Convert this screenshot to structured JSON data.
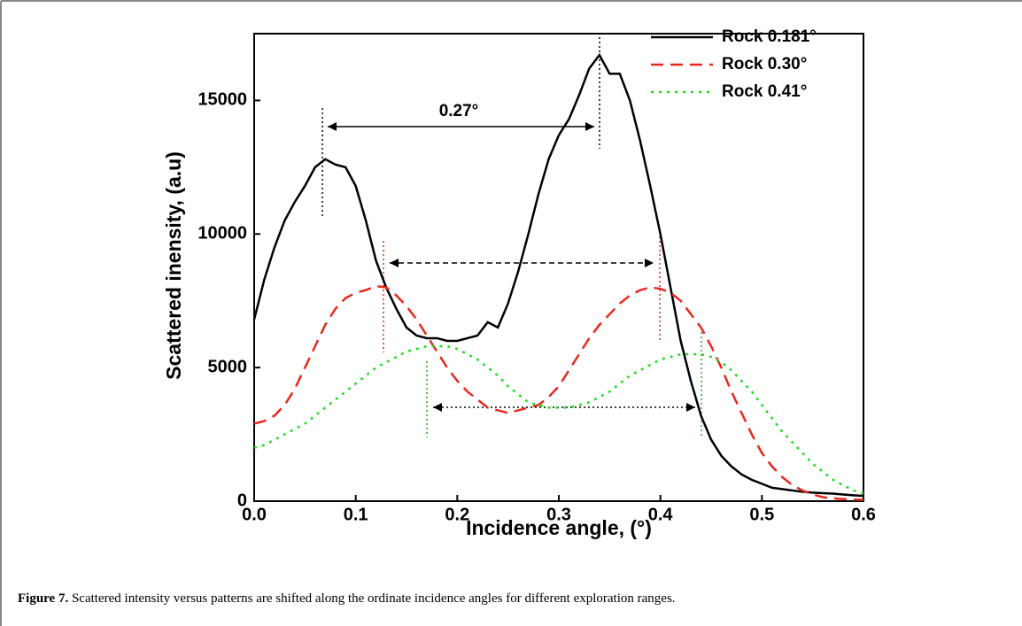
{
  "chart_data": {
    "type": "line",
    "xlabel": "Incidence angle, (°)",
    "ylabel": "Scattered inensity, (a.u)",
    "annotation": "0.27°",
    "x": [
      0,
      0.01,
      0.02,
      0.03,
      0.04,
      0.05,
      0.06,
      0.07,
      0.08,
      0.09,
      0.1,
      0.11,
      0.12,
      0.13,
      0.14,
      0.15,
      0.16,
      0.17,
      0.18,
      0.19,
      0.2,
      0.21,
      0.22,
      0.23,
      0.24,
      0.25,
      0.26,
      0.27,
      0.28,
      0.29,
      0.3,
      0.31,
      0.32,
      0.33,
      0.34,
      0.35,
      0.36,
      0.37,
      0.38,
      0.39,
      0.4,
      0.41,
      0.42,
      0.43,
      0.44,
      0.45,
      0.46,
      0.47,
      0.48,
      0.49,
      0.5,
      0.51,
      0.52,
      0.53,
      0.54,
      0.55,
      0.56,
      0.57,
      0.58,
      0.59,
      0.6
    ],
    "series": [
      {
        "name": "Rock 0.181°",
        "color": "#000000",
        "dash": "solid",
        "values": [
          6800,
          8300,
          9500,
          10500,
          11200,
          11800,
          12500,
          12800,
          12600,
          12500,
          11800,
          10500,
          9000,
          8000,
          7200,
          6500,
          6200,
          6100,
          6100,
          6000,
          6000,
          6100,
          6200,
          6700,
          6500,
          7400,
          8600,
          10000,
          11500,
          12800,
          13700,
          14300,
          15200,
          16200,
          16700,
          16000,
          16000,
          15000,
          13500,
          11800,
          10000,
          8000,
          6000,
          4500,
          3200,
          2300,
          1700,
          1300,
          1000,
          800,
          650,
          500,
          450,
          400,
          350,
          320,
          300,
          280,
          250,
          220,
          200
        ]
      },
      {
        "name": "Rock 0.30°",
        "color": "#e8281e",
        "dash": "dashed",
        "values": [
          2900,
          3000,
          3200,
          3600,
          4200,
          5000,
          5800,
          6600,
          7200,
          7600,
          7800,
          7900,
          8050,
          8000,
          7700,
          7300,
          6800,
          6200,
          5600,
          5000,
          4500,
          4100,
          3800,
          3500,
          3400,
          3300,
          3400,
          3500,
          3600,
          3900,
          4300,
          4900,
          5500,
          6100,
          6600,
          7000,
          7400,
          7700,
          7900,
          8000,
          7950,
          7800,
          7500,
          7000,
          6500,
          5800,
          5000,
          4100,
          3300,
          2500,
          1800,
          1300,
          900,
          600,
          400,
          250,
          150,
          100,
          80,
          60,
          50
        ]
      },
      {
        "name": "Rock 0.41°",
        "color": "#22dd22",
        "dash": "dotted",
        "values": [
          2000,
          2100,
          2300,
          2500,
          2700,
          2900,
          3200,
          3500,
          3800,
          4100,
          4400,
          4700,
          5000,
          5200,
          5400,
          5600,
          5700,
          5800,
          5800,
          5800,
          5700,
          5500,
          5300,
          5000,
          4700,
          4300,
          4000,
          3700,
          3600,
          3500,
          3500,
          3500,
          3600,
          3700,
          3900,
          4100,
          4400,
          4700,
          4900,
          5100,
          5300,
          5400,
          5500,
          5500,
          5500,
          5400,
          5200,
          4900,
          4500,
          4100,
          3600,
          3100,
          2600,
          2200,
          1800,
          1400,
          1100,
          800,
          600,
          400,
          300
        ]
      }
    ],
    "xlim": [
      0,
      0.6
    ],
    "xticks": [
      {
        "value": 0,
        "label": "0.0"
      },
      0.1,
      0.2,
      0.3,
      0.4,
      0.5,
      0.6
    ],
    "ylim": [
      0,
      17500
    ],
    "yticks": [
      0,
      5000,
      10000,
      15000
    ],
    "legend": "top-right"
  },
  "caption": {
    "label": "Figure 7.",
    "text": " Scattered intensity versus patterns are shifted along the ordinate incidence angles for different exploration ranges."
  }
}
